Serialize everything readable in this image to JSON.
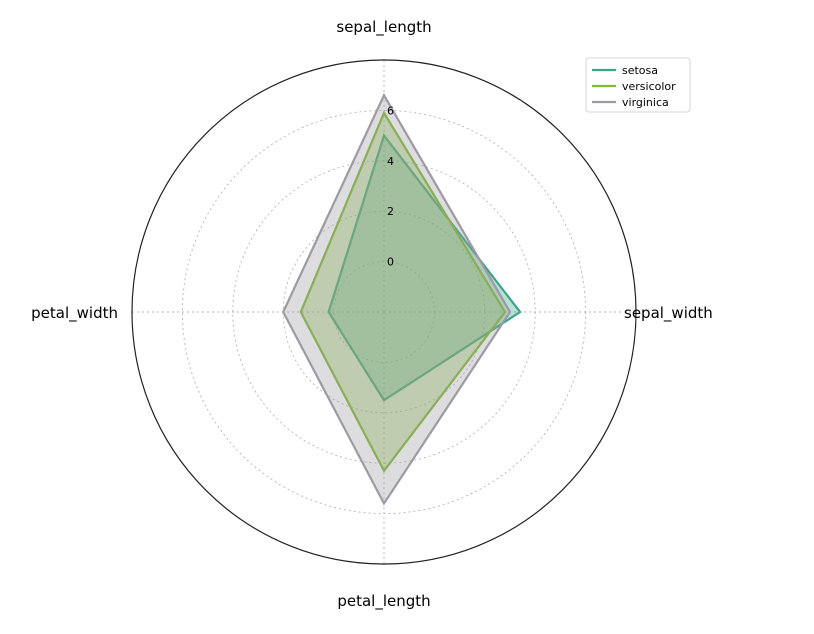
{
  "chart_data": {
    "type": "radar",
    "axes": [
      "sepal_length",
      "sepal_width",
      "petal_length",
      "petal_width"
    ],
    "rticks": [
      0,
      2,
      4,
      6
    ],
    "rlim": [
      -2,
      8
    ],
    "grid": true,
    "legend_position": "top-right",
    "series": [
      {
        "name": "setosa",
        "values": [
          5.0,
          3.4,
          1.5,
          0.2
        ],
        "color": "#3aa58a"
      },
      {
        "name": "versicolor",
        "values": [
          5.9,
          2.8,
          4.3,
          1.3
        ],
        "color": "#7dbb2f"
      },
      {
        "name": "virginica",
        "values": [
          6.6,
          3.0,
          5.6,
          2.0
        ],
        "color": "#9d9aa3"
      }
    ]
  }
}
